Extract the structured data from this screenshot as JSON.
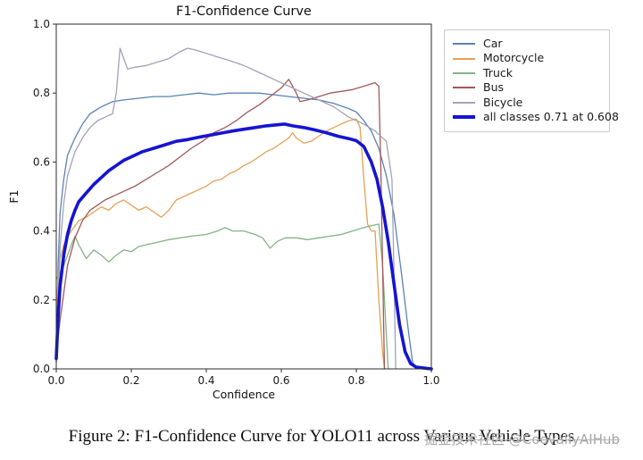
{
  "page": {
    "background": "#ffffff"
  },
  "chart_data": {
    "type": "line",
    "title": "F1-Confidence Curve",
    "xlabel": "Confidence",
    "ylabel": "F1",
    "xlim": [
      0,
      1
    ],
    "ylim": [
      0,
      1
    ],
    "x_ticks": [
      "0.0",
      "0.2",
      "0.4",
      "0.6",
      "0.8",
      "1.0"
    ],
    "y_ticks": [
      "0.0",
      "0.2",
      "0.4",
      "0.6",
      "0.8",
      "1.0"
    ],
    "grid": false,
    "legend_position": "upper-right-outside",
    "best_f1": 0.71,
    "best_confidence": 0.608,
    "series": [
      {
        "name": "Car",
        "color": "#5a82b4",
        "width": 1.3,
        "points": [
          [
            0,
            0.02
          ],
          [
            0.005,
            0.3
          ],
          [
            0.01,
            0.45
          ],
          [
            0.02,
            0.55
          ],
          [
            0.03,
            0.62
          ],
          [
            0.05,
            0.67
          ],
          [
            0.07,
            0.71
          ],
          [
            0.09,
            0.74
          ],
          [
            0.12,
            0.76
          ],
          [
            0.15,
            0.775
          ],
          [
            0.18,
            0.78
          ],
          [
            0.22,
            0.785
          ],
          [
            0.26,
            0.79
          ],
          [
            0.3,
            0.79
          ],
          [
            0.34,
            0.795
          ],
          [
            0.38,
            0.8
          ],
          [
            0.42,
            0.795
          ],
          [
            0.46,
            0.8
          ],
          [
            0.5,
            0.8
          ],
          [
            0.54,
            0.8
          ],
          [
            0.58,
            0.795
          ],
          [
            0.62,
            0.79
          ],
          [
            0.66,
            0.785
          ],
          [
            0.7,
            0.78
          ],
          [
            0.74,
            0.77
          ],
          [
            0.78,
            0.755
          ],
          [
            0.8,
            0.745
          ],
          [
            0.82,
            0.72
          ],
          [
            0.84,
            0.69
          ],
          [
            0.86,
            0.64
          ],
          [
            0.88,
            0.56
          ],
          [
            0.9,
            0.45
          ],
          [
            0.92,
            0.28
          ],
          [
            0.94,
            0.1
          ],
          [
            0.95,
            0.02
          ],
          [
            0.96,
            0
          ]
        ]
      },
      {
        "name": "Motorcycle",
        "color": "#e5a055",
        "width": 1.3,
        "points": [
          [
            0,
            0.18
          ],
          [
            0.005,
            0.26
          ],
          [
            0.01,
            0.32
          ],
          [
            0.02,
            0.36
          ],
          [
            0.04,
            0.4
          ],
          [
            0.06,
            0.43
          ],
          [
            0.08,
            0.44
          ],
          [
            0.1,
            0.455
          ],
          [
            0.12,
            0.47
          ],
          [
            0.14,
            0.46
          ],
          [
            0.16,
            0.48
          ],
          [
            0.18,
            0.49
          ],
          [
            0.2,
            0.475
          ],
          [
            0.22,
            0.46
          ],
          [
            0.24,
            0.47
          ],
          [
            0.26,
            0.455
          ],
          [
            0.28,
            0.44
          ],
          [
            0.3,
            0.46
          ],
          [
            0.32,
            0.49
          ],
          [
            0.34,
            0.5
          ],
          [
            0.36,
            0.51
          ],
          [
            0.38,
            0.52
          ],
          [
            0.4,
            0.53
          ],
          [
            0.42,
            0.545
          ],
          [
            0.44,
            0.55
          ],
          [
            0.46,
            0.565
          ],
          [
            0.48,
            0.575
          ],
          [
            0.5,
            0.59
          ],
          [
            0.52,
            0.6
          ],
          [
            0.54,
            0.615
          ],
          [
            0.56,
            0.63
          ],
          [
            0.58,
            0.64
          ],
          [
            0.6,
            0.655
          ],
          [
            0.62,
            0.67
          ],
          [
            0.63,
            0.685
          ],
          [
            0.64,
            0.67
          ],
          [
            0.66,
            0.655
          ],
          [
            0.68,
            0.66
          ],
          [
            0.7,
            0.675
          ],
          [
            0.72,
            0.69
          ],
          [
            0.74,
            0.7
          ],
          [
            0.76,
            0.71
          ],
          [
            0.78,
            0.72
          ],
          [
            0.8,
            0.725
          ],
          [
            0.81,
            0.7
          ],
          [
            0.82,
            0.55
          ],
          [
            0.83,
            0.42
          ],
          [
            0.84,
            0.4
          ],
          [
            0.85,
            0.4
          ],
          [
            0.86,
            0.2
          ],
          [
            0.87,
            0.05
          ],
          [
            0.875,
            0
          ]
        ]
      },
      {
        "name": "Truck",
        "color": "#83b383",
        "width": 1.3,
        "points": [
          [
            0,
            0.26
          ],
          [
            0.01,
            0.28
          ],
          [
            0.02,
            0.3
          ],
          [
            0.03,
            0.33
          ],
          [
            0.04,
            0.36
          ],
          [
            0.05,
            0.385
          ],
          [
            0.06,
            0.36
          ],
          [
            0.07,
            0.34
          ],
          [
            0.08,
            0.32
          ],
          [
            0.1,
            0.345
          ],
          [
            0.12,
            0.33
          ],
          [
            0.14,
            0.31
          ],
          [
            0.16,
            0.33
          ],
          [
            0.18,
            0.345
          ],
          [
            0.2,
            0.34
          ],
          [
            0.22,
            0.355
          ],
          [
            0.24,
            0.36
          ],
          [
            0.26,
            0.365
          ],
          [
            0.28,
            0.37
          ],
          [
            0.3,
            0.375
          ],
          [
            0.33,
            0.38
          ],
          [
            0.36,
            0.385
          ],
          [
            0.4,
            0.39
          ],
          [
            0.43,
            0.4
          ],
          [
            0.45,
            0.41
          ],
          [
            0.47,
            0.4
          ],
          [
            0.5,
            0.4
          ],
          [
            0.53,
            0.39
          ],
          [
            0.55,
            0.38
          ],
          [
            0.57,
            0.35
          ],
          [
            0.59,
            0.37
          ],
          [
            0.61,
            0.38
          ],
          [
            0.64,
            0.38
          ],
          [
            0.67,
            0.375
          ],
          [
            0.7,
            0.38
          ],
          [
            0.73,
            0.385
          ],
          [
            0.76,
            0.39
          ],
          [
            0.79,
            0.4
          ],
          [
            0.82,
            0.41
          ],
          [
            0.84,
            0.415
          ],
          [
            0.86,
            0.42
          ],
          [
            0.87,
            0.3
          ],
          [
            0.88,
            0.1
          ],
          [
            0.885,
            0
          ]
        ]
      },
      {
        "name": "Bus",
        "color": "#a35858",
        "width": 1.3,
        "points": [
          [
            0,
            0.05
          ],
          [
            0.01,
            0.14
          ],
          [
            0.02,
            0.22
          ],
          [
            0.03,
            0.3
          ],
          [
            0.05,
            0.38
          ],
          [
            0.07,
            0.43
          ],
          [
            0.09,
            0.46
          ],
          [
            0.11,
            0.475
          ],
          [
            0.13,
            0.49
          ],
          [
            0.15,
            0.5
          ],
          [
            0.18,
            0.515
          ],
          [
            0.21,
            0.53
          ],
          [
            0.24,
            0.55
          ],
          [
            0.27,
            0.57
          ],
          [
            0.3,
            0.59
          ],
          [
            0.33,
            0.615
          ],
          [
            0.36,
            0.64
          ],
          [
            0.39,
            0.66
          ],
          [
            0.42,
            0.685
          ],
          [
            0.45,
            0.7
          ],
          [
            0.48,
            0.72
          ],
          [
            0.51,
            0.745
          ],
          [
            0.54,
            0.765
          ],
          [
            0.57,
            0.79
          ],
          [
            0.6,
            0.815
          ],
          [
            0.62,
            0.84
          ],
          [
            0.64,
            0.8
          ],
          [
            0.65,
            0.775
          ],
          [
            0.67,
            0.78
          ],
          [
            0.7,
            0.79
          ],
          [
            0.73,
            0.8
          ],
          [
            0.76,
            0.805
          ],
          [
            0.79,
            0.81
          ],
          [
            0.82,
            0.82
          ],
          [
            0.85,
            0.83
          ],
          [
            0.86,
            0.82
          ],
          [
            0.865,
            0.6
          ],
          [
            0.87,
            0.3
          ],
          [
            0.875,
            0
          ]
        ]
      },
      {
        "name": "Bicycle",
        "color": "#a2a2b8",
        "width": 1.3,
        "points": [
          [
            0,
            0.02
          ],
          [
            0.005,
            0.2
          ],
          [
            0.01,
            0.35
          ],
          [
            0.02,
            0.48
          ],
          [
            0.03,
            0.56
          ],
          [
            0.05,
            0.63
          ],
          [
            0.07,
            0.67
          ],
          [
            0.09,
            0.7
          ],
          [
            0.11,
            0.72
          ],
          [
            0.13,
            0.73
          ],
          [
            0.15,
            0.74
          ],
          [
            0.16,
            0.8
          ],
          [
            0.17,
            0.93
          ],
          [
            0.18,
            0.9
          ],
          [
            0.19,
            0.87
          ],
          [
            0.21,
            0.875
          ],
          [
            0.24,
            0.88
          ],
          [
            0.27,
            0.89
          ],
          [
            0.3,
            0.9
          ],
          [
            0.33,
            0.92
          ],
          [
            0.35,
            0.93
          ],
          [
            0.37,
            0.925
          ],
          [
            0.4,
            0.915
          ],
          [
            0.43,
            0.905
          ],
          [
            0.46,
            0.895
          ],
          [
            0.5,
            0.88
          ],
          [
            0.54,
            0.86
          ],
          [
            0.58,
            0.84
          ],
          [
            0.62,
            0.82
          ],
          [
            0.66,
            0.8
          ],
          [
            0.7,
            0.78
          ],
          [
            0.74,
            0.76
          ],
          [
            0.78,
            0.73
          ],
          [
            0.82,
            0.71
          ],
          [
            0.85,
            0.69
          ],
          [
            0.88,
            0.66
          ],
          [
            0.895,
            0.55
          ],
          [
            0.9,
            0.3
          ],
          [
            0.905,
            0
          ]
        ]
      },
      {
        "name": "all classes 0.71 at 0.608",
        "color": "#1414d2",
        "width": 3.6,
        "points": [
          [
            0,
            0.03
          ],
          [
            0.005,
            0.15
          ],
          [
            0.01,
            0.24
          ],
          [
            0.02,
            0.33
          ],
          [
            0.03,
            0.39
          ],
          [
            0.04,
            0.43
          ],
          [
            0.05,
            0.46
          ],
          [
            0.06,
            0.485
          ],
          [
            0.08,
            0.51
          ],
          [
            0.1,
            0.535
          ],
          [
            0.12,
            0.555
          ],
          [
            0.14,
            0.575
          ],
          [
            0.16,
            0.59
          ],
          [
            0.18,
            0.605
          ],
          [
            0.2,
            0.615
          ],
          [
            0.23,
            0.63
          ],
          [
            0.26,
            0.64
          ],
          [
            0.29,
            0.65
          ],
          [
            0.32,
            0.66
          ],
          [
            0.35,
            0.665
          ],
          [
            0.38,
            0.672
          ],
          [
            0.41,
            0.678
          ],
          [
            0.44,
            0.684
          ],
          [
            0.47,
            0.69
          ],
          [
            0.5,
            0.695
          ],
          [
            0.53,
            0.7
          ],
          [
            0.56,
            0.705
          ],
          [
            0.59,
            0.708
          ],
          [
            0.608,
            0.71
          ],
          [
            0.63,
            0.705
          ],
          [
            0.66,
            0.7
          ],
          [
            0.69,
            0.693
          ],
          [
            0.72,
            0.685
          ],
          [
            0.75,
            0.675
          ],
          [
            0.78,
            0.668
          ],
          [
            0.8,
            0.662
          ],
          [
            0.82,
            0.645
          ],
          [
            0.84,
            0.6
          ],
          [
            0.855,
            0.55
          ],
          [
            0.87,
            0.47
          ],
          [
            0.885,
            0.37
          ],
          [
            0.9,
            0.25
          ],
          [
            0.915,
            0.13
          ],
          [
            0.93,
            0.05
          ],
          [
            0.945,
            0.015
          ],
          [
            0.96,
            0.005
          ],
          [
            1,
            0
          ]
        ]
      }
    ]
  },
  "caption": {
    "text": "Figure 2: F1-Confidence Curve for YOLO11 across Various Vehicle Types",
    "watermark": "掘金技术社区 @CoovallyAIHub"
  }
}
